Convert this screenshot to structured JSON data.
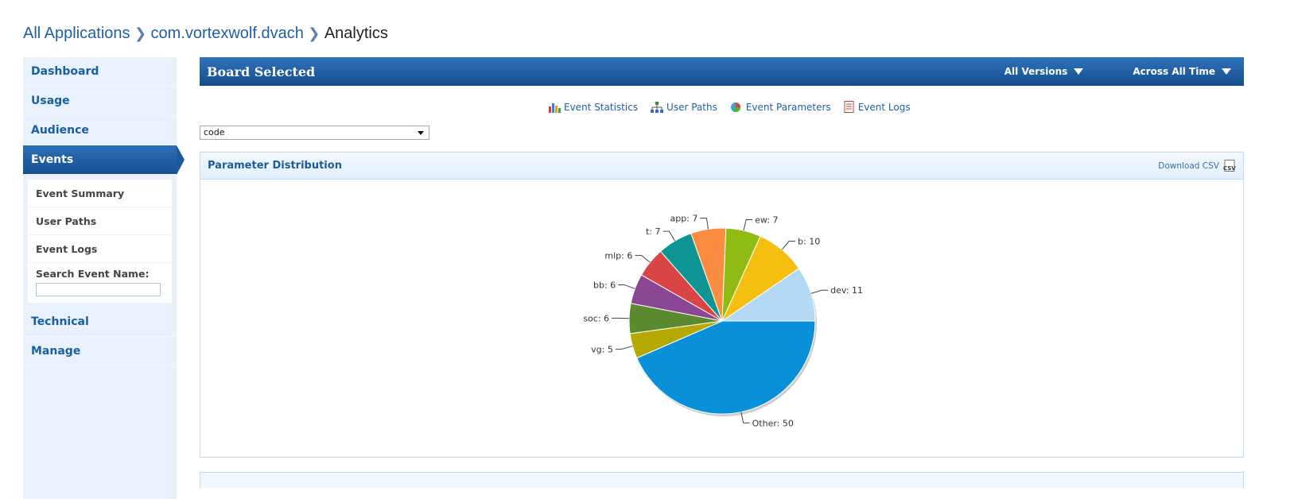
{
  "breadcrumb": {
    "items": [
      {
        "label": "All Applications"
      },
      {
        "label": "com.vortexwolf.dvach"
      },
      {
        "label": "Analytics"
      }
    ]
  },
  "sidebar": {
    "items": [
      {
        "label": "Dashboard"
      },
      {
        "label": "Usage"
      },
      {
        "label": "Audience"
      },
      {
        "label": "Events"
      },
      {
        "label": "Technical"
      },
      {
        "label": "Manage"
      }
    ],
    "subitems": [
      {
        "label": "Event Summary"
      },
      {
        "label": "User Paths"
      },
      {
        "label": "Event Logs"
      }
    ],
    "search_label": "Search Event Name:",
    "search_value": ""
  },
  "header": {
    "title": "Board Selected",
    "versions_label": "All Versions",
    "time_label": "Across All Time"
  },
  "tabs": [
    {
      "label": "Event Statistics",
      "icon": "bar-chart-icon"
    },
    {
      "label": "User Paths",
      "icon": "hierarchy-icon"
    },
    {
      "label": "Event Parameters",
      "icon": "pie-chart-icon"
    },
    {
      "label": "Event Logs",
      "icon": "document-icon"
    }
  ],
  "param_select": {
    "value": "code"
  },
  "panel": {
    "title": "Parameter Distribution",
    "download_label": "Download CSV"
  },
  "chart_data": {
    "type": "pie",
    "slices": [
      {
        "label": "dev",
        "value": 11,
        "color": "#b3d9f5"
      },
      {
        "label": "Other",
        "value": 50,
        "color": "#0a8fd9"
      },
      {
        "label": "vg",
        "value": 5,
        "color": "#b5a800"
      },
      {
        "label": "soc",
        "value": 6,
        "color": "#5c8a2e"
      },
      {
        "label": "bb",
        "value": 6,
        "color": "#8b4793"
      },
      {
        "label": "mlp",
        "value": 6,
        "color": "#d94545"
      },
      {
        "label": "t",
        "value": 7,
        "color": "#0f9494"
      },
      {
        "label": "app",
        "value": 7,
        "color": "#fa8d42"
      },
      {
        "label": "ew",
        "value": 7,
        "color": "#8fbb12"
      },
      {
        "label": "b",
        "value": 10,
        "color": "#f5bf10"
      }
    ]
  }
}
